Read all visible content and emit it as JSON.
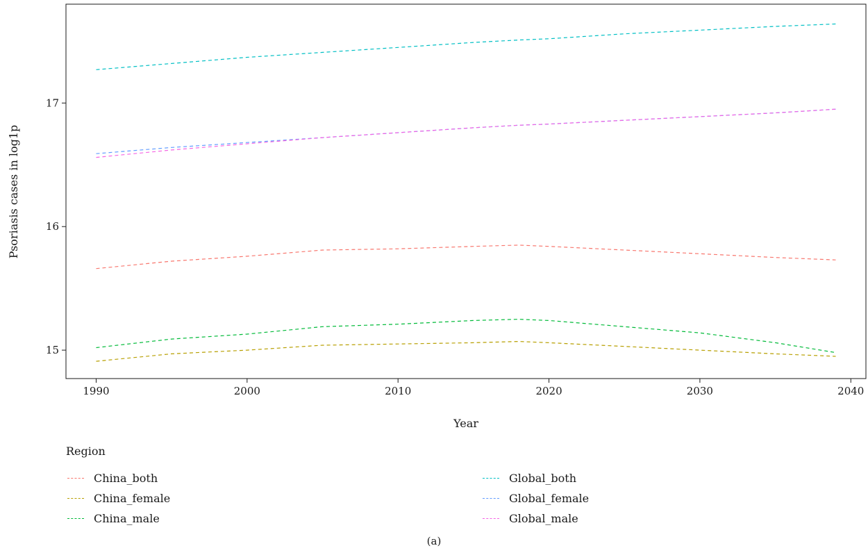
{
  "chart_data": {
    "type": "line",
    "title": "",
    "xlabel": "Year",
    "ylabel": "Psoriasis cases in log1p",
    "xlim": [
      1988,
      2041
    ],
    "ylim": [
      14.77,
      17.8
    ],
    "xticks": [
      1990,
      2000,
      2010,
      2020,
      2030,
      2040
    ],
    "yticks": [
      15,
      16,
      17
    ],
    "grid": false,
    "line_style": "dashed",
    "legend": {
      "title": "Region",
      "placement": "bottom"
    },
    "x": [
      1990,
      1995,
      2000,
      2005,
      2010,
      2015,
      2018,
      2020,
      2025,
      2030,
      2035,
      2039
    ],
    "series": [
      {
        "name": "China_both",
        "color": "#F8766D",
        "values": [
          15.66,
          15.72,
          15.76,
          15.81,
          15.82,
          15.84,
          15.85,
          15.84,
          15.81,
          15.78,
          15.75,
          15.73
        ]
      },
      {
        "name": "China_female",
        "color": "#B79F00",
        "values": [
          14.91,
          14.97,
          15.0,
          15.04,
          15.05,
          15.06,
          15.07,
          15.06,
          15.03,
          15.0,
          14.97,
          14.95
        ]
      },
      {
        "name": "China_male",
        "color": "#00BA38",
        "values": [
          15.02,
          15.09,
          15.13,
          15.19,
          15.21,
          15.24,
          15.25,
          15.24,
          15.19,
          15.14,
          15.06,
          14.98
        ]
      },
      {
        "name": "Global_both",
        "color": "#00BFC4",
        "values": [
          17.27,
          17.32,
          17.37,
          17.41,
          17.45,
          17.49,
          17.51,
          17.52,
          17.56,
          17.59,
          17.62,
          17.64
        ]
      },
      {
        "name": "Global_female",
        "color": "#619CFF",
        "values": [
          16.59,
          16.64,
          16.68,
          16.72,
          16.76,
          16.8,
          16.82,
          16.83,
          16.86,
          16.89,
          16.92,
          16.95
        ]
      },
      {
        "name": "Global_male",
        "color": "#F564E3",
        "values": [
          16.56,
          16.62,
          16.67,
          16.72,
          16.76,
          16.8,
          16.82,
          16.83,
          16.86,
          16.89,
          16.92,
          16.95
        ]
      }
    ]
  },
  "caption": "(a)"
}
